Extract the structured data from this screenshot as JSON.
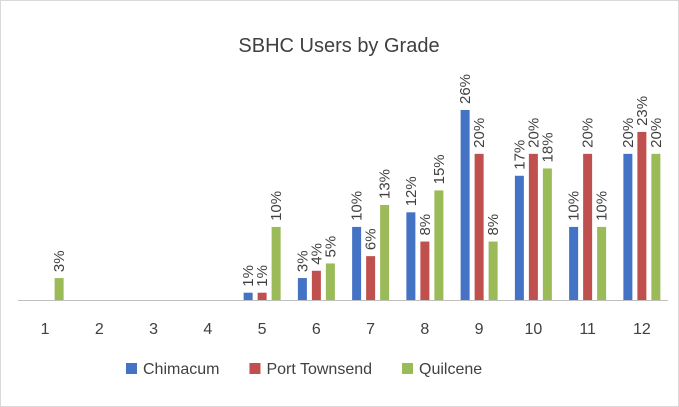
{
  "chart_data": {
    "type": "bar",
    "title": "SBHC Users by Grade",
    "categories": [
      "1",
      "2",
      "3",
      "4",
      "5",
      "6",
      "7",
      "8",
      "9",
      "10",
      "11",
      "12"
    ],
    "series": [
      {
        "name": "Chimacum",
        "color": "#4472c4",
        "values": [
          0,
          0,
          0,
          0,
          1,
          3,
          10,
          12,
          26,
          17,
          10,
          20
        ],
        "value_labels": [
          null,
          null,
          null,
          null,
          "1%",
          "3%",
          "10%",
          "12%",
          "26%",
          "17%",
          "10%",
          "20%"
        ]
      },
      {
        "name": "Port Townsend",
        "color": "#c0504d",
        "values": [
          0,
          0,
          0,
          0,
          1,
          4,
          6,
          8,
          20,
          20,
          20,
          23
        ],
        "value_labels": [
          null,
          null,
          null,
          null,
          "1%",
          "4%",
          "6%",
          "8%",
          "20%",
          "20%",
          "20%",
          "23%"
        ]
      },
      {
        "name": "Quilcene",
        "color": "#9bbb59",
        "values": [
          3,
          0,
          0,
          0,
          10,
          5,
          13,
          15,
          8,
          18,
          10,
          20
        ],
        "value_labels": [
          "3%",
          null,
          null,
          null,
          "10%",
          "5%",
          "13%",
          "15%",
          "8%",
          "18%",
          "10%",
          "20%"
        ]
      }
    ],
    "legend": "bottom"
  }
}
